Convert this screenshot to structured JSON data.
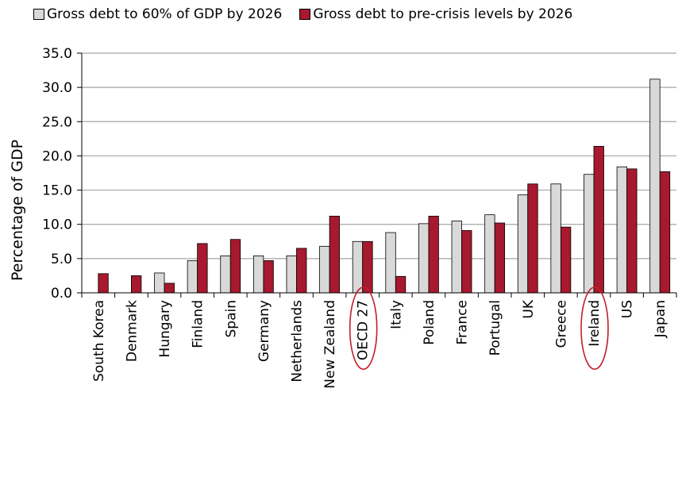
{
  "chart_data": {
    "type": "bar",
    "title": "",
    "xlabel": "",
    "ylabel": "Percentage of GDP",
    "ylim": [
      0,
      35
    ],
    "yticks": [
      "0.0",
      "5.0",
      "10.0",
      "15.0",
      "20.0",
      "25.0",
      "30.0",
      "35.0"
    ],
    "grid": true,
    "legend_position": "top",
    "categories": [
      "South Korea",
      "Denmark",
      "Hungary",
      "Finland",
      "Spain",
      "Germany",
      "Netherlands",
      "New Zealand",
      "OECD 27",
      "Italy",
      "Poland",
      "France",
      "Portugal",
      "UK",
      "Greece",
      "Ireland",
      "US",
      "Japan"
    ],
    "highlighted": [
      "OECD 27",
      "Ireland"
    ],
    "series": [
      {
        "name": "Gross debt to 60% of GDP by 2026",
        "color": "#d9d9d9",
        "values": [
          0,
          0,
          2.9,
          4.7,
          5.4,
          5.4,
          5.4,
          6.8,
          7.5,
          8.8,
          10.1,
          10.5,
          11.4,
          14.3,
          15.9,
          17.3,
          18.4,
          31.2
        ]
      },
      {
        "name": "Gross debt to pre-crisis levels by 2026",
        "color": "#a6192e",
        "values": [
          2.8,
          2.5,
          1.4,
          7.2,
          7.8,
          4.7,
          6.5,
          11.2,
          7.5,
          2.4,
          11.2,
          9.1,
          10.2,
          15.9,
          9.6,
          21.4,
          18.1,
          17.7
        ]
      }
    ]
  }
}
